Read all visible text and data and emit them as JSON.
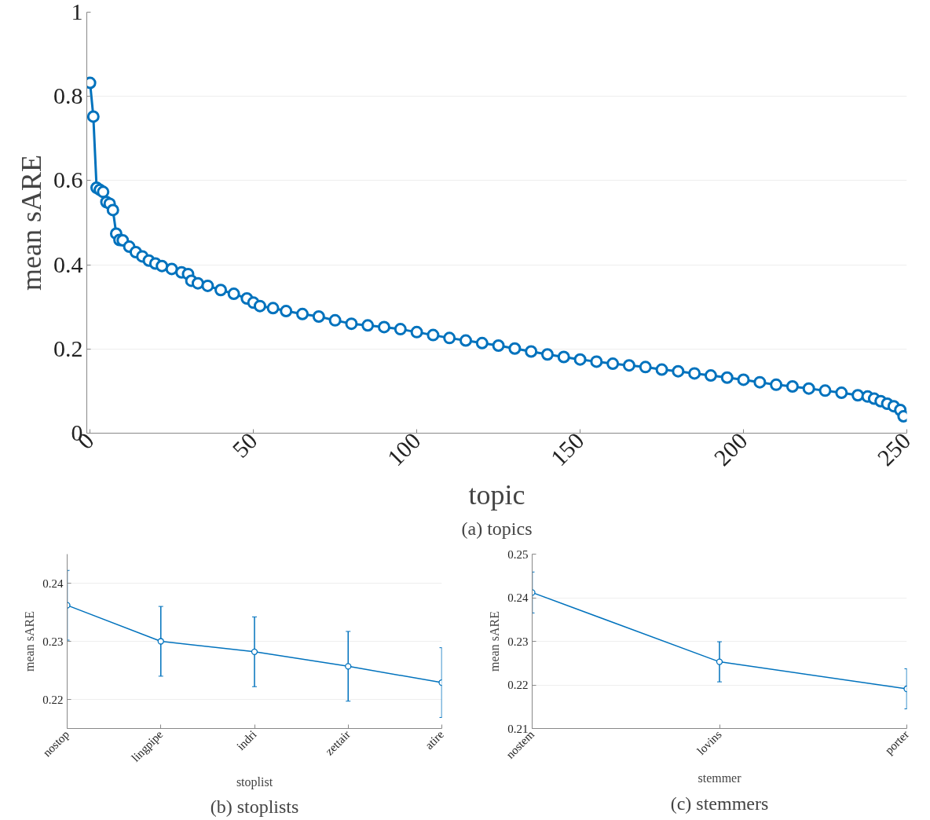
{
  "chart_data": [
    {
      "type": "line",
      "xlabel": "topic",
      "ylabel": "mean sARE",
      "annotations": [
        "(a) topics"
      ],
      "marker": "circle",
      "grid": "y",
      "color": "#0072bd",
      "x": [
        0,
        1,
        2,
        3,
        4,
        5,
        6,
        7,
        8,
        9,
        10,
        12,
        14,
        16,
        18,
        20,
        22,
        25,
        28,
        30,
        31,
        33,
        36,
        40,
        44,
        48,
        50,
        52,
        56,
        60,
        65,
        70,
        75,
        80,
        85,
        90,
        95,
        100,
        105,
        110,
        115,
        120,
        125,
        130,
        135,
        140,
        145,
        150,
        155,
        160,
        165,
        170,
        175,
        180,
        185,
        190,
        195,
        200,
        205,
        210,
        215,
        220,
        225,
        230,
        235,
        238,
        240,
        242,
        244,
        246,
        248,
        249
      ],
      "values": [
        0.832,
        0.752,
        0.583,
        0.578,
        0.573,
        0.549,
        0.545,
        0.53,
        0.474,
        0.459,
        0.458,
        0.443,
        0.43,
        0.42,
        0.41,
        0.403,
        0.397,
        0.39,
        0.382,
        0.378,
        0.362,
        0.356,
        0.35,
        0.34,
        0.331,
        0.32,
        0.31,
        0.302,
        0.297,
        0.29,
        0.283,
        0.277,
        0.268,
        0.26,
        0.256,
        0.252,
        0.247,
        0.24,
        0.233,
        0.226,
        0.22,
        0.214,
        0.208,
        0.201,
        0.194,
        0.187,
        0.181,
        0.175,
        0.17,
        0.165,
        0.161,
        0.157,
        0.151,
        0.147,
        0.142,
        0.137,
        0.132,
        0.127,
        0.121,
        0.115,
        0.111,
        0.106,
        0.101,
        0.096,
        0.09,
        0.087,
        0.082,
        0.076,
        0.07,
        0.064,
        0.055,
        0.04
      ],
      "xlim": [
        -1,
        250
      ],
      "xticks": [
        0,
        50,
        100,
        150,
        200,
        250
      ],
      "ylim": [
        0,
        1
      ],
      "yticks": [
        0,
        {
          "value": 0.2,
          "label": "0.2"
        },
        {
          "value": 0.4,
          "label": "0.4"
        },
        {
          "value": 0.6,
          "label": "0.6"
        },
        {
          "value": 0.8,
          "label": "0.8"
        },
        1
      ]
    },
    {
      "type": "line",
      "xlabel": "stoplist",
      "ylabel": "mean sARE",
      "annotations": [
        "(b) stoplists"
      ],
      "marker": "circle",
      "grid": "y",
      "color": "#0072bd",
      "categories": [
        "nostop",
        "lingpipe",
        "indri",
        "zettair",
        "atire"
      ],
      "values": [
        0.2362,
        0.23,
        0.2282,
        0.2257,
        0.2229
      ],
      "errors": [
        0.006,
        0.006,
        0.006,
        0.006,
        0.006
      ],
      "ylim": [
        0.215,
        0.245
      ],
      "yticks": [
        0.22,
        0.23,
        0.24
      ]
    },
    {
      "type": "line",
      "xlabel": "stemmer",
      "ylabel": "mean sARE",
      "annotations": [
        "(c) stemmers"
      ],
      "marker": "circle",
      "grid": "y",
      "color": "#0072bd",
      "categories": [
        "nostem",
        "lovins",
        "porter"
      ],
      "values": [
        0.2412,
        0.2253,
        0.2191
      ],
      "errors": [
        0.0047,
        0.0046,
        0.0046
      ],
      "ylim": [
        0.21,
        0.25
      ],
      "yticks": [
        0.21,
        0.22,
        0.23,
        0.24,
        0.25
      ]
    }
  ]
}
